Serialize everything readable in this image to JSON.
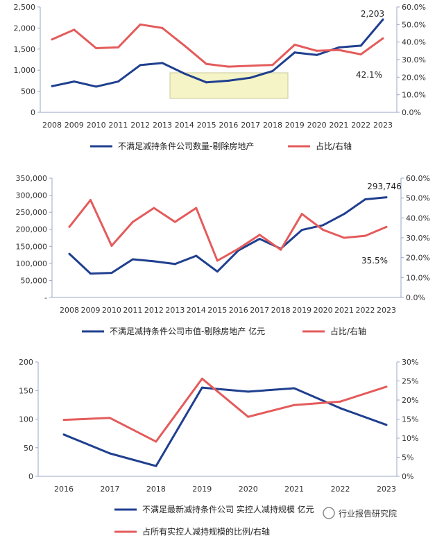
{
  "chart_data": [
    {
      "type": "line",
      "x": [
        "2008",
        "2009",
        "2010",
        "2011",
        "2012",
        "2013",
        "2014",
        "2015",
        "2016",
        "2017",
        "2018",
        "2019",
        "2020",
        "2021",
        "2022",
        "2023"
      ],
      "left_axis": {
        "ylim": [
          0,
          2500
        ],
        "ticks": [
          "0",
          "500",
          "1,000",
          "1,500",
          "2,000",
          "2,500"
        ]
      },
      "right_axis": {
        "ylim": [
          0,
          60
        ],
        "ticks": [
          "0.0%",
          "10.0%",
          "20.0%",
          "30.0%",
          "40.0%",
          "50.0%",
          "60.0%"
        ]
      },
      "series": [
        {
          "name": "不满足减持条件公司数量-剔除房地产",
          "axis": "left",
          "color": "#1f3f8f",
          "values": [
            620,
            730,
            610,
            730,
            1120,
            1170,
            920,
            710,
            750,
            820,
            980,
            1420,
            1360,
            1540,
            1580,
            2203
          ]
        },
        {
          "name": "占比/右轴",
          "axis": "right",
          "color": "#e45b5b",
          "values": [
            41.5,
            47,
            36.5,
            37,
            50,
            48,
            38,
            27.5,
            26,
            26.5,
            27,
            38.5,
            35,
            35.5,
            33,
            42.1
          ]
        }
      ],
      "annotations": [
        "2,203",
        "42.1%"
      ],
      "legend": "bottom",
      "highlight_box": {
        "color": "#f4f4c6"
      }
    },
    {
      "type": "line",
      "x": [
        "2008",
        "2009",
        "2010",
        "2011",
        "2012",
        "2013",
        "2014",
        "2015",
        "2016",
        "2017",
        "2018",
        "2019",
        "2020",
        "2021",
        "2022",
        "2023"
      ],
      "left_axis": {
        "ylim": [
          0,
          350000
        ],
        "ticks": [
          "-",
          "50,000",
          "100,000",
          "150,000",
          "200,000",
          "250,000",
          "300,000",
          "350,000"
        ]
      },
      "right_axis": {
        "ylim": [
          0,
          60
        ],
        "ticks": [
          "0.0%",
          "10.0%",
          "20.0%",
          "30.0%",
          "40.0%",
          "50.0%",
          "60.0%"
        ]
      },
      "series": [
        {
          "name": "不满足减持条件公司市值-剔除房地产 亿元",
          "axis": "left",
          "color": "#1f3f8f",
          "values": [
            128000,
            70000,
            72000,
            112000,
            106000,
            98000,
            122000,
            76000,
            138000,
            172000,
            143000,
            198000,
            212000,
            245000,
            288000,
            293746
          ]
        },
        {
          "name": "占比/右轴",
          "axis": "right",
          "color": "#e45b5b",
          "values": [
            35.5,
            49,
            26,
            38,
            45,
            38,
            45,
            18.5,
            24.5,
            31.5,
            24,
            42,
            34,
            30,
            31,
            35.5
          ]
        }
      ],
      "annotations": [
        "293,746",
        "35.5%"
      ],
      "legend": "bottom"
    },
    {
      "type": "line",
      "x": [
        "2016",
        "2017",
        "2018",
        "2019",
        "2020",
        "2021",
        "2022",
        "2023"
      ],
      "left_axis": {
        "ylim": [
          0,
          200
        ],
        "ticks": [
          "0",
          "50",
          "100",
          "150",
          "200"
        ]
      },
      "right_axis": {
        "ylim": [
          0,
          30
        ],
        "ticks": [
          "0%",
          "5%",
          "10%",
          "15%",
          "20%",
          "25%",
          "30%"
        ]
      },
      "series": [
        {
          "name": "不满足最新减持条件公司 实控人减持规模 亿元",
          "axis": "left",
          "color": "#1f3f8f",
          "values": [
            73,
            40,
            18,
            155,
            148,
            154,
            119,
            90
          ]
        },
        {
          "name": "占所有实控人减持规模的比例/右轴",
          "axis": "right",
          "color": "#e45b5b",
          "values": [
            14.8,
            15.3,
            9.1,
            25.6,
            15.6,
            18.7,
            19.6,
            23.5
          ]
        }
      ],
      "legend": "bottom"
    }
  ],
  "watermark": {
    "text": "行业报告研究院"
  }
}
